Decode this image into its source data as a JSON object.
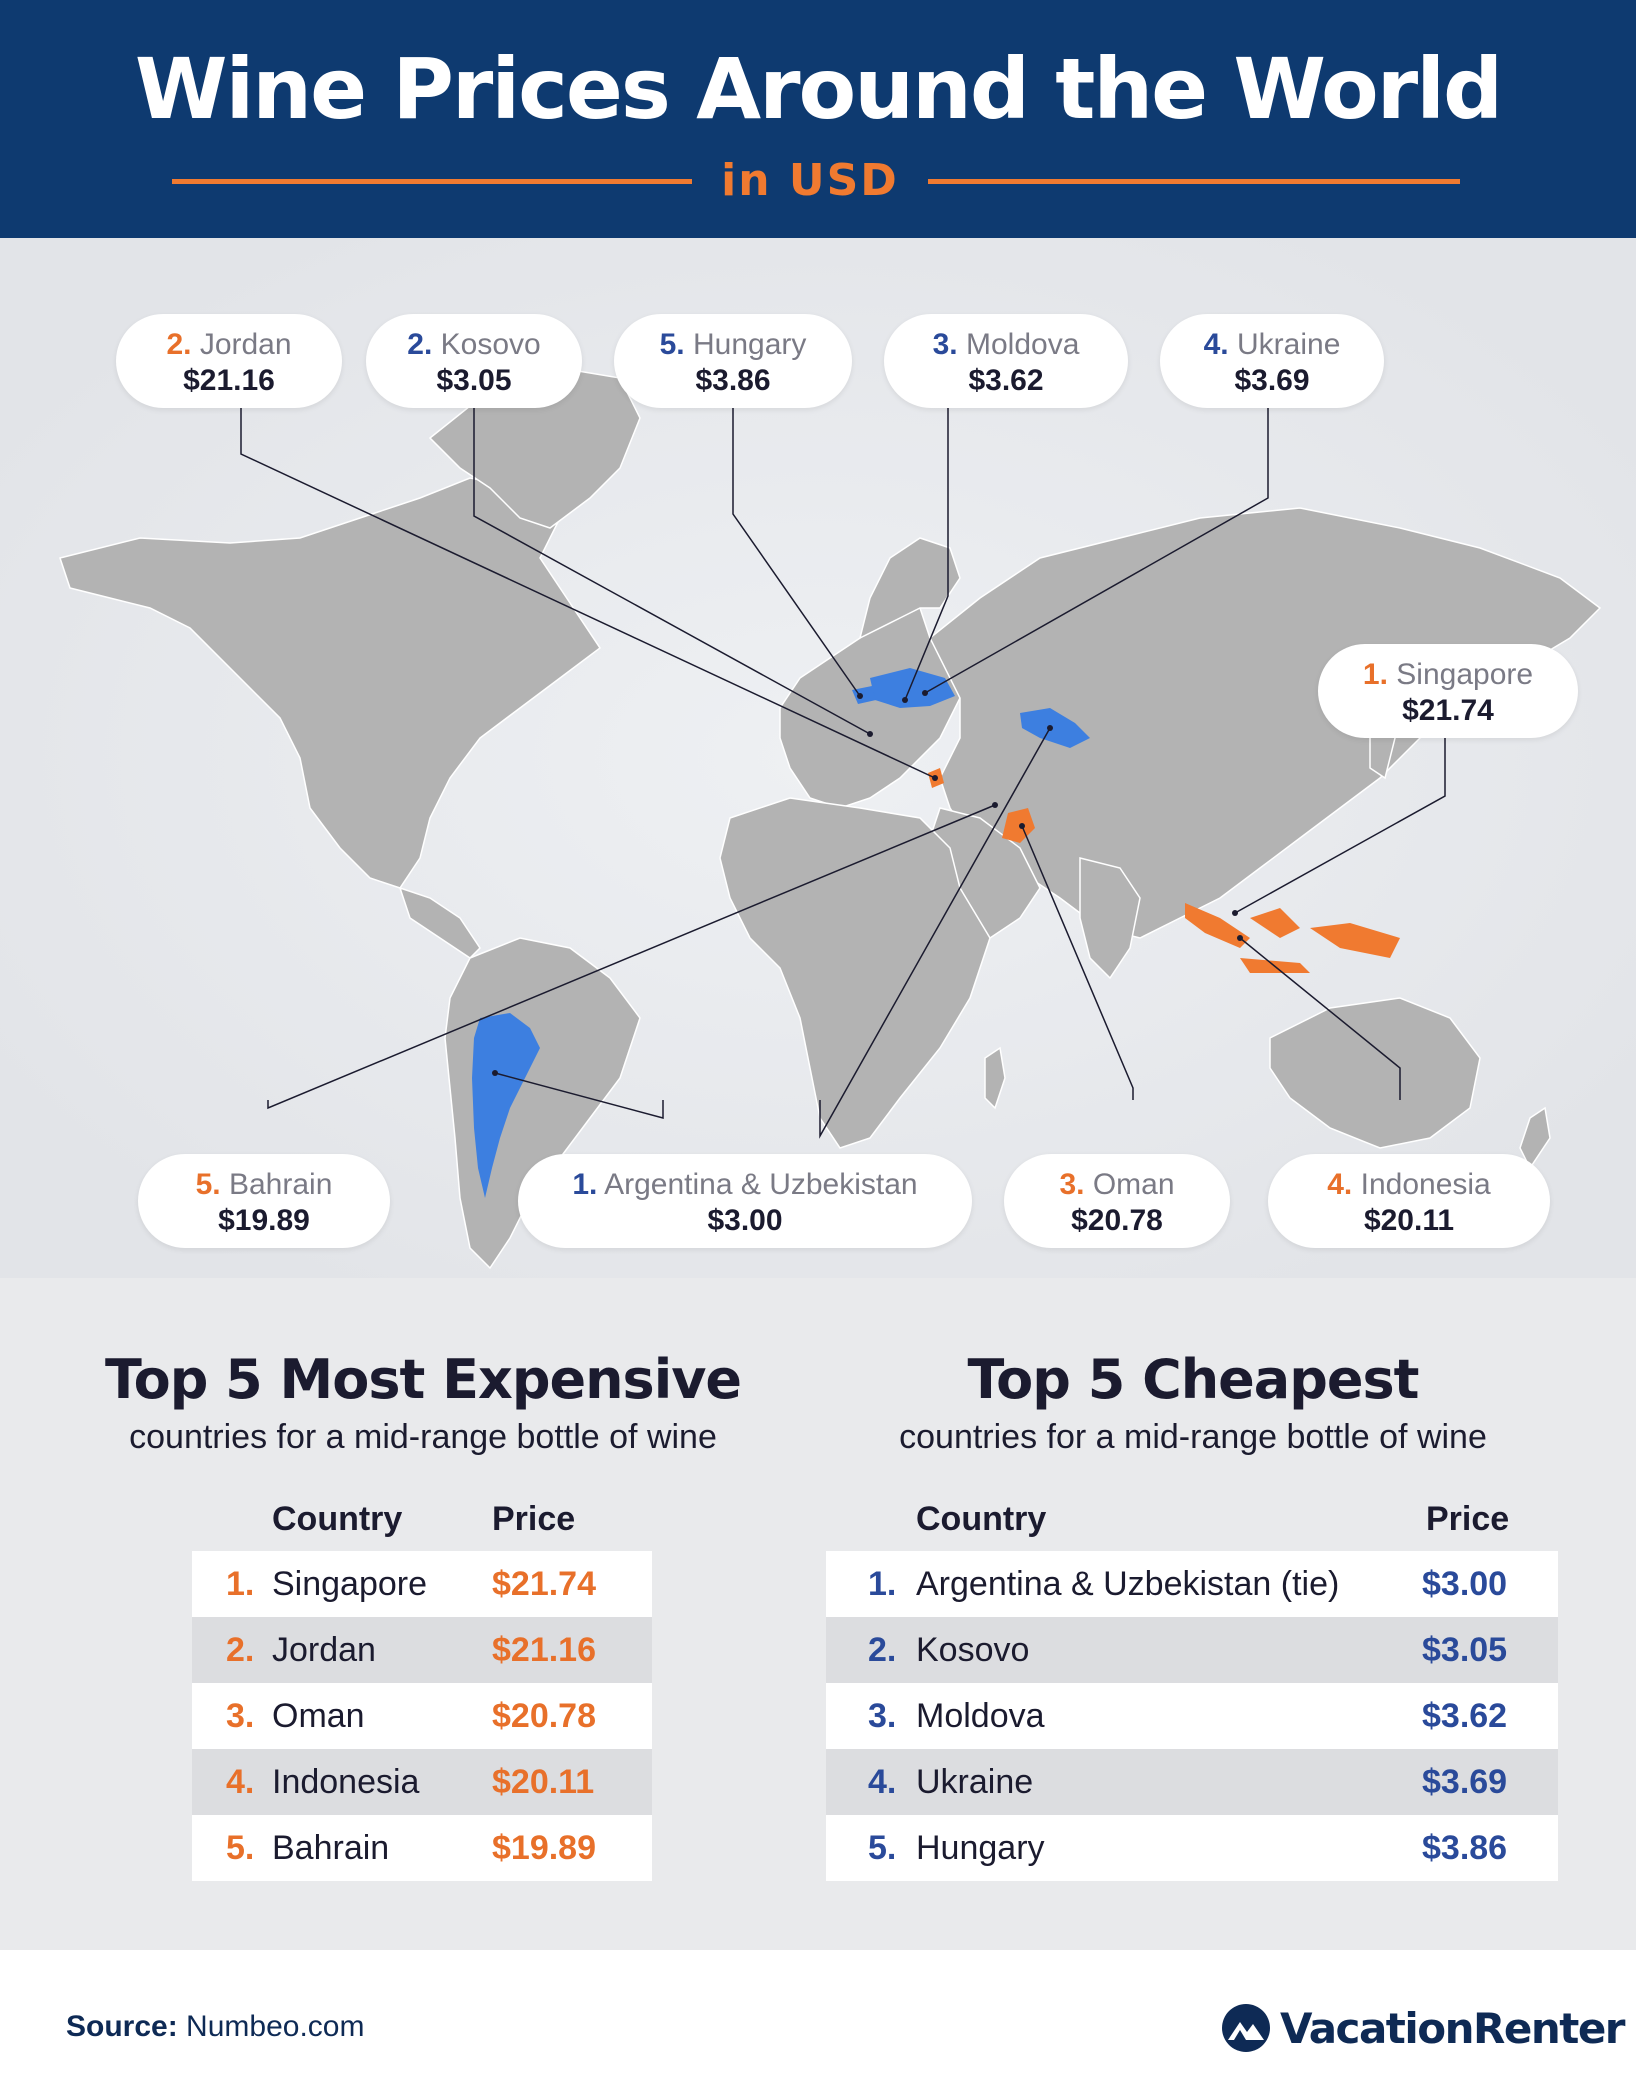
{
  "header": {
    "title": "Wine Prices Around the World",
    "subtitle": "in USD"
  },
  "colors": {
    "navy": "#0e3a70",
    "orange": "#e8702a",
    "blue": "#3d7fe0",
    "land": "#b3b3b3"
  },
  "callouts": {
    "jordan": {
      "rank": "2.",
      "name": "Jordan",
      "price": "$21.16",
      "type": "expensive"
    },
    "kosovo": {
      "rank": "2.",
      "name": "Kosovo",
      "price": "$3.05",
      "type": "cheap"
    },
    "hungary": {
      "rank": "5.",
      "name": "Hungary",
      "price": "$3.86",
      "type": "cheap"
    },
    "moldova": {
      "rank": "3.",
      "name": "Moldova",
      "price": "$3.62",
      "type": "cheap"
    },
    "ukraine": {
      "rank": "4.",
      "name": "Ukraine",
      "price": "$3.69",
      "type": "cheap"
    },
    "singapore": {
      "rank": "1.",
      "name": "Singapore",
      "price": "$21.74",
      "type": "expensive"
    },
    "bahrain": {
      "rank": "5.",
      "name": "Bahrain",
      "price": "$19.89",
      "type": "expensive"
    },
    "argentina": {
      "rank": "1.",
      "name": "Argentina & Uzbekistan",
      "price": "$3.00",
      "type": "cheap"
    },
    "oman": {
      "rank": "3.",
      "name": "Oman",
      "price": "$20.78",
      "type": "expensive"
    },
    "indonesia": {
      "rank": "4.",
      "name": "Indonesia",
      "price": "$20.11",
      "type": "expensive"
    }
  },
  "expensive": {
    "title": "Top 5 Most Expensive",
    "subtitle": "countries for a mid-range bottle of wine",
    "col_country": "Country",
    "col_price": "Price",
    "rows": [
      {
        "rank": "1.",
        "country": "Singapore",
        "price": "$21.74"
      },
      {
        "rank": "2.",
        "country": "Jordan",
        "price": "$21.16"
      },
      {
        "rank": "3.",
        "country": "Oman",
        "price": "$20.78"
      },
      {
        "rank": "4.",
        "country": "Indonesia",
        "price": "$20.11"
      },
      {
        "rank": "5.",
        "country": "Bahrain",
        "price": "$19.89"
      }
    ]
  },
  "cheapest": {
    "title": "Top 5 Cheapest",
    "subtitle": "countries for a mid-range bottle of wine",
    "col_country": "Country",
    "col_price": "Price",
    "rows": [
      {
        "rank": "1.",
        "country": "Argentina & Uzbekistan (tie)",
        "price": "$3.00"
      },
      {
        "rank": "2.",
        "country": "Kosovo",
        "price": "$3.05"
      },
      {
        "rank": "3.",
        "country": "Moldova",
        "price": "$3.62"
      },
      {
        "rank": "4.",
        "country": "Ukraine",
        "price": "$3.69"
      },
      {
        "rank": "5.",
        "country": "Hungary",
        "price": "$3.86"
      }
    ]
  },
  "footer": {
    "source_label": "Source:",
    "source_value": "Numbeo.com",
    "brand": "VacationRenter"
  }
}
